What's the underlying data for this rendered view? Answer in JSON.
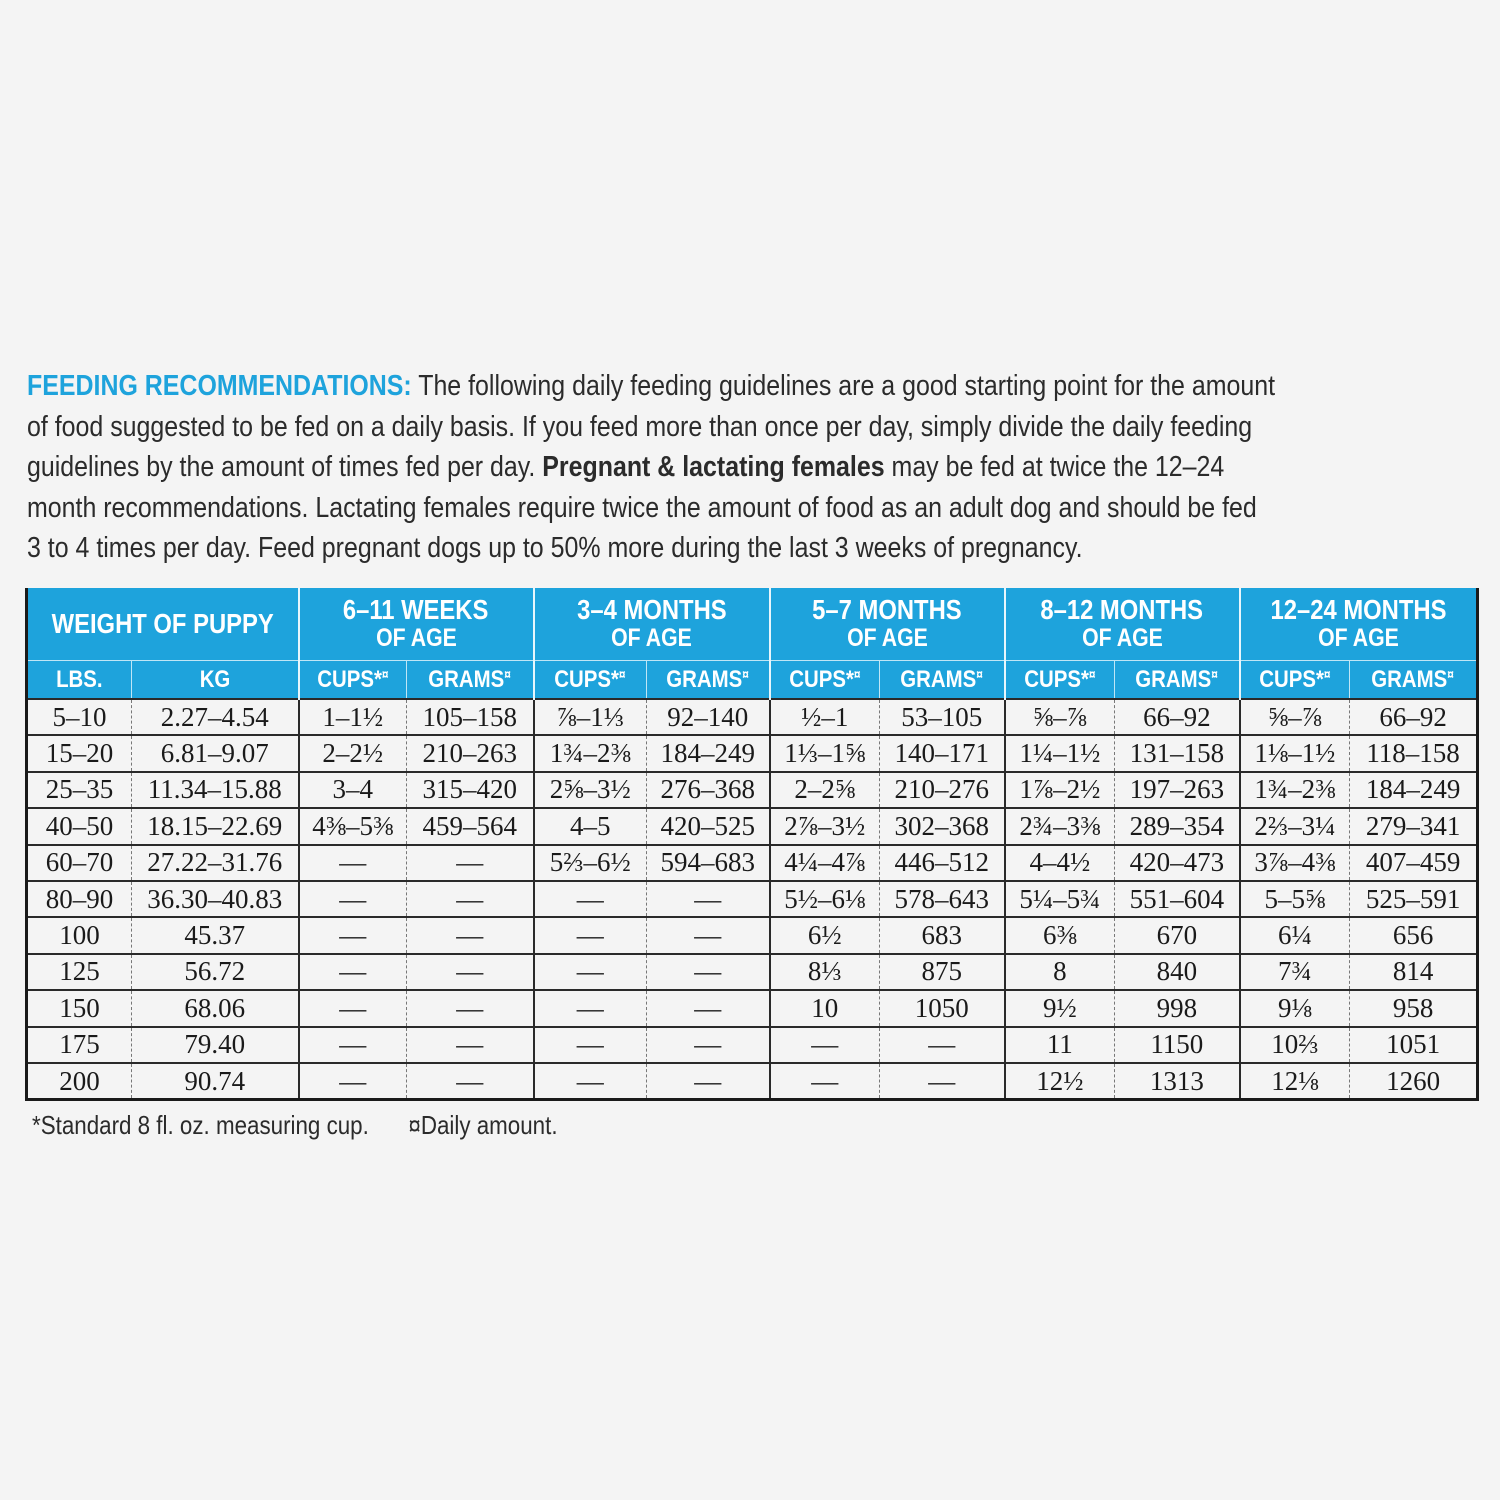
{
  "intro": {
    "lines": [
      [
        {
          "t": "FEEDING RECOMMENDATIONS:",
          "s": "lead"
        },
        {
          "t": " The following daily feeding guidelines are a good starting point for the amount"
        }
      ],
      [
        {
          "t": "of food suggested to be fed on a daily basis. If you feed more than once per day, simply divide the daily feeding"
        }
      ],
      [
        {
          "t": "guidelines by the amount of times fed per day. "
        },
        {
          "t": "Pregnant & lactating females",
          "s": "bold"
        },
        {
          "t": " may be fed at twice the 12–24"
        }
      ],
      [
        {
          "t": "month recommendations. Lactating females require twice the amount of food as an adult dog and should be fed"
        }
      ],
      [
        {
          "t": "3 to 4 times per day. Feed pregnant dogs up to 50% more during the last 3 weeks of pregnancy."
        }
      ]
    ]
  },
  "table": {
    "weight_header": "WEIGHT OF PUPPY",
    "age_groups": [
      {
        "title": "6–11 WEEKS",
        "sub": "OF AGE"
      },
      {
        "title": "3–4 MONTHS",
        "sub": "OF AGE"
      },
      {
        "title": "5–7 MONTHS",
        "sub": "OF AGE"
      },
      {
        "title": "8–12 MONTHS",
        "sub": "OF AGE"
      },
      {
        "title": "12–24 MONTHS",
        "sub": "OF AGE"
      }
    ],
    "sub_headers": {
      "lbs": "LBS.",
      "kg": "KG",
      "cups": "CUPS*",
      "cups_mark": "¤",
      "grams": "GRAMS",
      "grams_mark": "¤"
    },
    "rows": [
      [
        "5–10",
        "2.27–4.54",
        "1–1½",
        "105–158",
        "⅞–1⅓",
        "92–140",
        "½–1",
        "53–105",
        "⅝–⅞",
        "66–92",
        "⅝–⅞",
        "66–92"
      ],
      [
        "15–20",
        "6.81–9.07",
        "2–2½",
        "210–263",
        "1¾–2⅜",
        "184–249",
        "1⅓–1⅝",
        "140–171",
        "1¼–1½",
        "131–158",
        "1⅛–1½",
        "118–158"
      ],
      [
        "25–35",
        "11.34–15.88",
        "3–4",
        "315–420",
        "2⅝–3½",
        "276–368",
        "2–2⅝",
        "210–276",
        "1⅞–2½",
        "197–263",
        "1¾–2⅜",
        "184–249"
      ],
      [
        "40–50",
        "18.15–22.69",
        "4⅜–5⅜",
        "459–564",
        "4–5",
        "420–525",
        "2⅞–3½",
        "302–368",
        "2¾–3⅜",
        "289–354",
        "2⅔–3¼",
        "279–341"
      ],
      [
        "60–70",
        "27.22–31.76",
        "—",
        "—",
        "5⅔–6½",
        "594–683",
        "4¼–4⅞",
        "446–512",
        "4–4½",
        "420–473",
        "3⅞–4⅜",
        "407–459"
      ],
      [
        "80–90",
        "36.30–40.83",
        "—",
        "—",
        "—",
        "—",
        "5½–6⅛",
        "578–643",
        "5¼–5¾",
        "551–604",
        "5–5⅝",
        "525–591"
      ],
      [
        "100",
        "45.37",
        "—",
        "—",
        "—",
        "—",
        "6½",
        "683",
        "6⅜",
        "670",
        "6¼",
        "656"
      ],
      [
        "125",
        "56.72",
        "—",
        "—",
        "—",
        "—",
        "8⅓",
        "875",
        "8",
        "840",
        "7¾",
        "814"
      ],
      [
        "150",
        "68.06",
        "—",
        "—",
        "—",
        "—",
        "10",
        "1050",
        "9½",
        "998",
        "9⅛",
        "958"
      ],
      [
        "175",
        "79.40",
        "—",
        "—",
        "—",
        "—",
        "—",
        "—",
        "11",
        "1150",
        "10⅔",
        "1051"
      ],
      [
        "200",
        "90.74",
        "—",
        "—",
        "—",
        "—",
        "—",
        "—",
        "12½",
        "1313",
        "12⅛",
        "1260"
      ]
    ]
  },
  "footnotes": [
    "*Standard 8 fl. oz. measuring cup.",
    "¤Daily amount."
  ],
  "colors": {
    "header_blue": "#1ea3dc",
    "text": "#1a1a1a"
  }
}
